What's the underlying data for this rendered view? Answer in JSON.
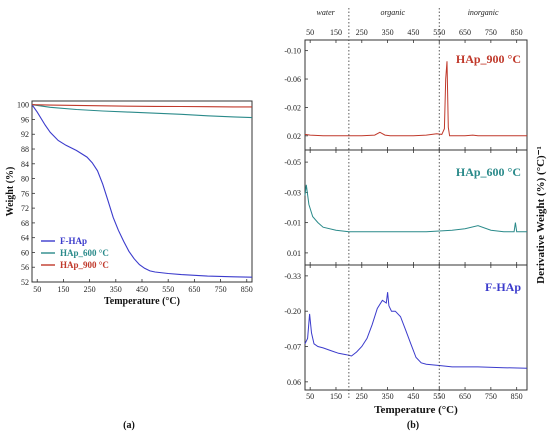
{
  "chart_data": [
    {
      "type": "line",
      "panel_label": "(a)",
      "xlabel": "Temperature (°C)",
      "ylabel": "Weight (%)",
      "xlim": [
        30,
        870
      ],
      "ylim": [
        52,
        101
      ],
      "xticks": [
        50,
        150,
        250,
        350,
        450,
        550,
        650,
        750,
        850
      ],
      "yticks": [
        52,
        56,
        60,
        64,
        68,
        72,
        76,
        80,
        84,
        88,
        92,
        96,
        100
      ],
      "legend_position": "bottom-left",
      "series": [
        {
          "name": "F-HAp",
          "color": "#3b3bcc",
          "x": [
            30,
            50,
            80,
            100,
            130,
            160,
            200,
            240,
            260,
            280,
            300,
            320,
            340,
            360,
            380,
            400,
            420,
            440,
            460,
            480,
            500,
            550,
            600,
            700,
            800,
            870
          ],
          "y": [
            100,
            98,
            94.5,
            92.5,
            90.3,
            89,
            87.6,
            85.8,
            84.3,
            82.1,
            78.5,
            74,
            69.5,
            66,
            63,
            60.3,
            58.3,
            56.7,
            55.7,
            55,
            54.7,
            54.3,
            54,
            53.6,
            53.4,
            53.3
          ]
        },
        {
          "name": "HAp_600 °C",
          "color": "#2a8a8a",
          "x": [
            30,
            100,
            200,
            300,
            400,
            500,
            600,
            700,
            800,
            870
          ],
          "y": [
            100,
            99.3,
            98.7,
            98.3,
            98,
            97.7,
            97.4,
            97,
            96.7,
            96.5
          ]
        },
        {
          "name": "HAp_900 °C",
          "color": "#c0392b",
          "x": [
            30,
            100,
            200,
            300,
            400,
            500,
            600,
            700,
            800,
            870
          ],
          "y": [
            100,
            99.9,
            99.8,
            99.7,
            99.6,
            99.55,
            99.5,
            99.45,
            99.4,
            99.4
          ]
        }
      ]
    },
    {
      "type": "line",
      "panel_label": "(b)",
      "xlabel": "Temperature (°C)",
      "ylabel": "Derivative Weight (%) (°C)⁻¹",
      "xlim": [
        30,
        890
      ],
      "xticks": [
        50,
        150,
        250,
        350,
        450,
        550,
        650,
        750,
        850
      ],
      "regions": [
        {
          "label": "water",
          "x_center": 110
        },
        {
          "label": "organic",
          "x_center": 370
        },
        {
          "label": "inorganic",
          "x_center": 720
        }
      ],
      "region_boundaries": [
        200,
        550
      ],
      "subplots": [
        {
          "name": "HAp_900 °C",
          "color": "#c0392b",
          "ylim": [
            0.04,
            -0.115
          ],
          "yticks": [
            -0.1,
            -0.06,
            -0.02,
            0.02
          ],
          "ytick_labels": [
            "-0.10",
            "-0.06",
            "-0.02",
            "0.02"
          ],
          "x": [
            30,
            50,
            100,
            150,
            200,
            250,
            300,
            320,
            340,
            360,
            400,
            450,
            500,
            540,
            560,
            570,
            575,
            580,
            585,
            590,
            600,
            650,
            680,
            700,
            750,
            800,
            850,
            890
          ],
          "y": [
            0.018,
            0.019,
            0.02,
            0.02,
            0.02,
            0.02,
            0.019,
            0.015,
            0.019,
            0.02,
            0.02,
            0.02,
            0.019,
            0.017,
            0.018,
            0.01,
            -0.06,
            -0.085,
            0.008,
            0.02,
            0.02,
            0.02,
            0.019,
            0.02,
            0.02,
            0.02,
            0.02,
            0.02
          ]
        },
        {
          "name": "HAp_600 °C",
          "color": "#2a8a8a",
          "ylim": [
            0.018,
            -0.058
          ],
          "yticks": [
            -0.05,
            -0.03,
            -0.01,
            0.01
          ],
          "ytick_labels": [
            "-0.05",
            "-0.03",
            "-0.01",
            "0.01"
          ],
          "x": [
            30,
            35,
            45,
            60,
            80,
            100,
            150,
            200,
            300,
            400,
            500,
            600,
            650,
            700,
            750,
            800,
            840,
            845,
            850,
            870,
            890
          ],
          "y": [
            -0.028,
            -0.035,
            -0.022,
            -0.014,
            -0.01,
            -0.007,
            -0.005,
            -0.004,
            -0.004,
            -0.004,
            -0.004,
            -0.005,
            -0.006,
            -0.008,
            -0.005,
            -0.004,
            -0.004,
            -0.01,
            -0.004,
            -0.004,
            -0.004
          ]
        },
        {
          "name": "F-HAp",
          "color": "#3b3bcc",
          "ylim": [
            0.09,
            -0.37
          ],
          "yticks": [
            -0.33,
            -0.2,
            -0.07,
            0.06
          ],
          "ytick_labels": [
            "-0.33",
            "-0.20",
            "-0.07",
            "0.06"
          ],
          "x": [
            30,
            40,
            48,
            55,
            65,
            80,
            100,
            130,
            160,
            190,
            210,
            230,
            250,
            270,
            290,
            310,
            330,
            345,
            350,
            355,
            365,
            380,
            400,
            420,
            440,
            460,
            480,
            500,
            550,
            600,
            700,
            800,
            890
          ],
          "y": [
            -0.08,
            -0.1,
            -0.19,
            -0.12,
            -0.08,
            -0.07,
            -0.065,
            -0.055,
            -0.045,
            -0.04,
            -0.035,
            -0.05,
            -0.07,
            -0.1,
            -0.15,
            -0.21,
            -0.24,
            -0.23,
            -0.27,
            -0.22,
            -0.2,
            -0.2,
            -0.18,
            -0.13,
            -0.08,
            -0.03,
            -0.01,
            -0.005,
            0.0,
            0.005,
            0.005,
            0.008,
            0.01
          ]
        }
      ]
    }
  ]
}
